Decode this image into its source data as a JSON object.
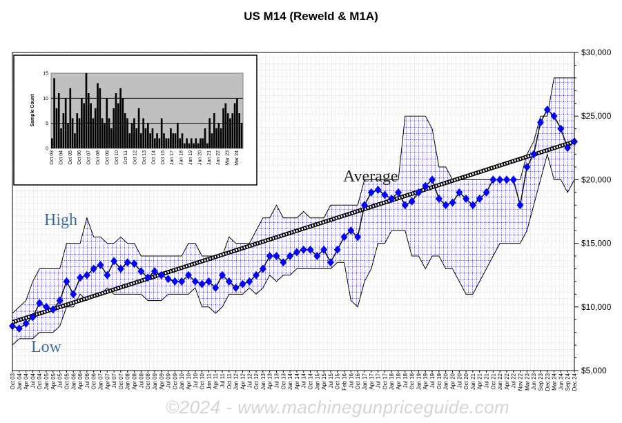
{
  "chart_data": {
    "type": "line",
    "title": "US M14 (Reweld & M1A)",
    "ylabel": "",
    "ylim": [
      5000,
      30000
    ],
    "y_ticks": [
      "$5,000",
      "$10,000",
      "$15,000",
      "$20,000",
      "$25,000",
      "$30,000"
    ],
    "y_tick_values": [
      5000,
      10000,
      15000,
      20000,
      25000,
      30000
    ],
    "categories": [
      "Oct 03",
      "Jan 04",
      "Apr 04",
      "Jul 04",
      "Oct 04",
      "Jan 05",
      "Apr 05",
      "Jul 05",
      "Oct 05",
      "Jan 06",
      "Apr 06",
      "Jul 06",
      "Oct 06",
      "Jan 07",
      "Apr 07",
      "Jul 07",
      "Oct 07",
      "Jan 08",
      "Apr 08",
      "Jul 08",
      "Oct 08",
      "Jan 09",
      "Apr 09",
      "Jul 09",
      "Oct 09",
      "Jan 10",
      "Apr 10",
      "Jul 10",
      "Oct 10",
      "Jan 11",
      "Apr 11",
      "Jul 11",
      "Oct 11",
      "Jan 12",
      "Apr 12",
      "Jul 12",
      "Oct 12",
      "Jan 13",
      "Apr 13",
      "Jul 13",
      "Oct 13",
      "Jan 14",
      "Apr 14",
      "Jul 14",
      "Oct 14",
      "Jan 15",
      "Apr 15",
      "Jul 15",
      "Oct 15",
      "Feb 16",
      "Jul 16",
      "Oct 16",
      "Jan 17",
      "Apr 17",
      "Jul 17",
      "Oct 17",
      "Jan 18",
      "Apr 18",
      "Jul 18",
      "Oct 18",
      "Jan 19",
      "Apr 19",
      "Jul 19",
      "Oct 19",
      "Jan 20",
      "Apr 20",
      "Jul 20",
      "Oct 20",
      "Jan 21",
      "Apr 21",
      "Jul 21",
      "Oct 21",
      "Jan 22",
      "Apr 22",
      "Jul 22",
      "Nov 22",
      "Mar 23",
      "Jun 23",
      "Sep 23",
      "Dec 23",
      "Mar 24",
      "Jun 24",
      "Sep 24",
      "Dec 24"
    ],
    "series": [
      {
        "name": "Average",
        "color": "#0000ff",
        "values": [
          8500,
          8300,
          8700,
          9200,
          10300,
          10000,
          9800,
          10500,
          12000,
          11000,
          12300,
          12500,
          13000,
          13300,
          12500,
          13600,
          13000,
          13500,
          13400,
          12800,
          12300,
          12800,
          12500,
          12200,
          12000,
          12000,
          12500,
          12000,
          11800,
          12000,
          11500,
          12500,
          12000,
          11500,
          11800,
          12000,
          12500,
          13000,
          14000,
          14000,
          13500,
          14000,
          14300,
          14500,
          14500,
          14000,
          14500,
          13500,
          14500,
          15500,
          16000,
          15500,
          18000,
          19000,
          19200,
          18800,
          18500,
          19000,
          18000,
          18300,
          19000,
          19500,
          20000,
          18500,
          18000,
          18200,
          19000,
          18500,
          18000,
          18500,
          19000,
          20000,
          20000,
          20000,
          20000,
          18000,
          21000,
          22000,
          24500,
          25500,
          25000,
          24000,
          22500,
          23000
        ]
      },
      {
        "name": "High",
        "color": "#000000",
        "values": [
          9500,
          10000,
          10500,
          12000,
          13000,
          13000,
          13000,
          13000,
          15000,
          15000,
          15000,
          17000,
          15500,
          15500,
          15000,
          15000,
          15500,
          15000,
          15000,
          14000,
          14000,
          14000,
          14000,
          14000,
          14000,
          14000,
          15000,
          15000,
          14000,
          14000,
          14000,
          14000,
          15500,
          15000,
          15000,
          15000,
          16000,
          17000,
          17000,
          18000,
          17000,
          17000,
          17000,
          17500,
          17000,
          17000,
          17000,
          18000,
          18000,
          18000,
          18000,
          18000,
          20000,
          20000,
          20000,
          20000,
          20000,
          20000,
          25000,
          25000,
          25000,
          25000,
          24000,
          21000,
          21000,
          20000,
          20000,
          20000,
          20000,
          20000,
          20000,
          20000,
          20000,
          20000,
          20000,
          20000,
          22000,
          23000,
          25000,
          25000,
          28000,
          28000,
          28000,
          28000
        ]
      },
      {
        "name": "Low",
        "color": "#000000",
        "values": [
          7000,
          7500,
          7500,
          7500,
          8000,
          8000,
          8000,
          8500,
          10000,
          10000,
          11000,
          10500,
          11000,
          11000,
          11500,
          11000,
          11000,
          11000,
          11000,
          11000,
          10500,
          10500,
          10500,
          11000,
          11000,
          11000,
          11000,
          11500,
          10000,
          10000,
          9500,
          10000,
          11000,
          11000,
          11000,
          11500,
          11000,
          11500,
          12500,
          12000,
          12500,
          12500,
          13000,
          13000,
          13000,
          13000,
          13000,
          13000,
          13500,
          13500,
          10500,
          10000,
          12000,
          13000,
          15000,
          15000,
          16000,
          16000,
          16000,
          14000,
          14000,
          13000,
          14000,
          14000,
          13000,
          13000,
          12000,
          11000,
          11000,
          12000,
          13000,
          14000,
          15000,
          15000,
          15000,
          15000,
          16000,
          18000,
          20000,
          22000,
          20000,
          20000,
          19000,
          20000
        ]
      }
    ],
    "trend": {
      "name": "Average trend",
      "start": 8800,
      "end": 23000
    },
    "annotations": {
      "high": "High",
      "low": "Low",
      "average": "Average"
    },
    "grid": true,
    "inset": {
      "type": "bar",
      "ylabel": "Sample Count",
      "ylim": [
        0,
        15
      ],
      "y_ticks": [
        "0",
        "5",
        "10",
        "15"
      ],
      "y_tick_values": [
        0,
        5,
        10,
        15
      ],
      "values": [
        2,
        14,
        8,
        11,
        4,
        7,
        10,
        5,
        12,
        6,
        3,
        7,
        6,
        10,
        9,
        15,
        11,
        9,
        6,
        8,
        13,
        12,
        6,
        5,
        10,
        6,
        4,
        8,
        11,
        9,
        12,
        10,
        7,
        6,
        3,
        5,
        6,
        4,
        8,
        3,
        6,
        4,
        5,
        3,
        4,
        2,
        3,
        2,
        6,
        3,
        2,
        2,
        4,
        3,
        3,
        5,
        2,
        3,
        1,
        2,
        1,
        2,
        1,
        2,
        1,
        2,
        2,
        4,
        1,
        6,
        3,
        7,
        4,
        5,
        4,
        8,
        9,
        7,
        6,
        7,
        9,
        10,
        7,
        5
      ]
    }
  },
  "watermark": "©2024 - www.machinegunpriceguide.com"
}
